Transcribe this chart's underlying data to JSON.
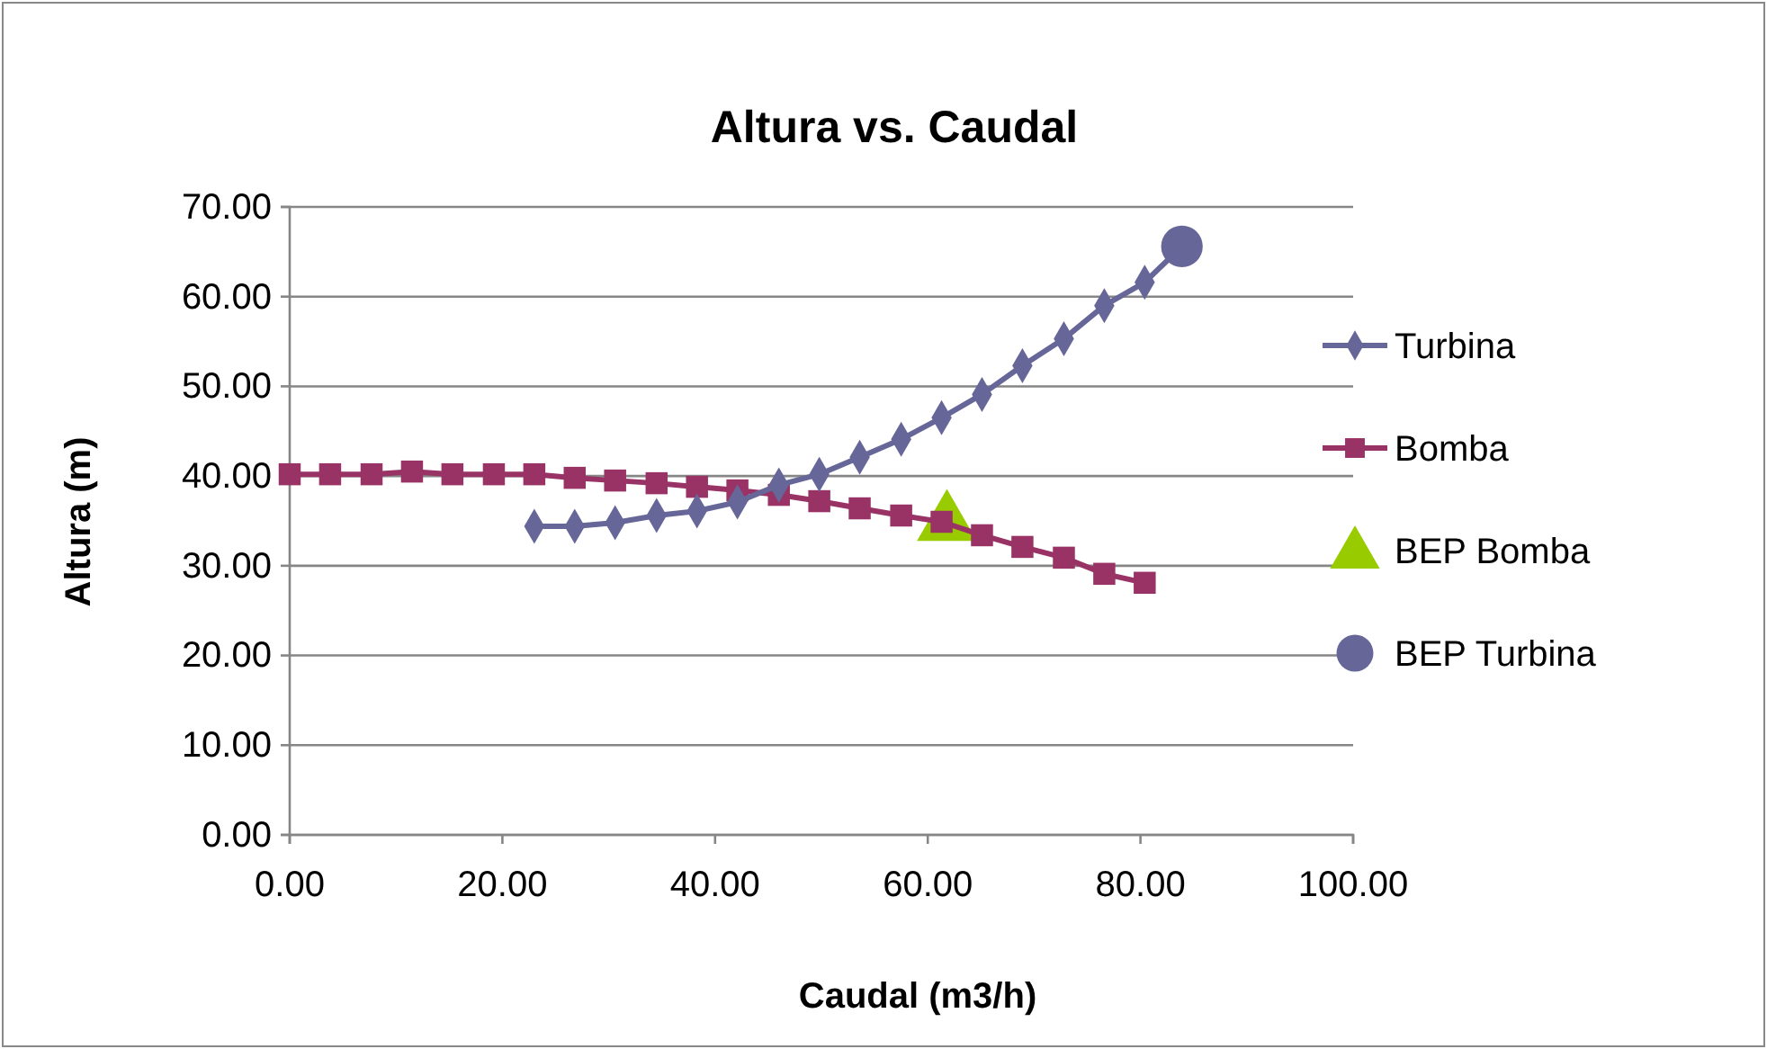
{
  "chart_data": {
    "type": "line",
    "title": "Altura vs. Caudal",
    "xlabel": "Caudal (m3/h)",
    "ylabel": "Altura (m)",
    "xlim": [
      0,
      100
    ],
    "xticks": [
      {
        "value": 0,
        "label": "0.00"
      },
      {
        "value": 20,
        "label": "20.00"
      },
      {
        "value": 40,
        "label": "40.00"
      },
      {
        "value": 60,
        "label": "60.00"
      },
      {
        "value": 80,
        "label": "80.00"
      },
      {
        "value": 100,
        "label": "100.00"
      }
    ],
    "ylim": [
      0,
      70
    ],
    "yticks": [
      {
        "value": 0,
        "label": "0.00"
      },
      {
        "value": 10,
        "label": "10.00"
      },
      {
        "value": 20,
        "label": "20.00"
      },
      {
        "value": 30,
        "label": "30.00"
      },
      {
        "value": 40,
        "label": "40.00"
      },
      {
        "value": 50,
        "label": "50.00"
      },
      {
        "value": 60,
        "label": "60.00"
      },
      {
        "value": 70,
        "label": "70.00"
      }
    ],
    "grid": "y",
    "legend": "right",
    "series": [
      {
        "name": "Turbina",
        "color": "#666699",
        "marker": "diamond",
        "line_style": "solid",
        "x": [
          23.0,
          26.8,
          30.6,
          34.5,
          38.3,
          42.1,
          46.0,
          49.8,
          53.6,
          57.5,
          61.3,
          65.1,
          68.9,
          72.8,
          76.6,
          80.4,
          83.9
        ],
        "values": [
          34.4,
          34.4,
          34.8,
          35.6,
          36.1,
          37.1,
          39.0,
          40.2,
          42.1,
          44.1,
          46.5,
          49.1,
          52.3,
          55.3,
          59.0,
          61.6,
          65.6
        ]
      },
      {
        "name": "Bomba",
        "color": "#993366",
        "marker": "square",
        "line_style": "solid",
        "x": [
          0,
          3.8,
          7.7,
          11.5,
          15.3,
          19.2,
          23.0,
          26.8,
          30.6,
          34.5,
          38.3,
          42.1,
          46.0,
          49.8,
          53.6,
          57.5,
          61.3,
          65.1,
          68.9,
          72.8,
          76.6,
          80.4
        ],
        "values": [
          40.2,
          40.2,
          40.2,
          40.5,
          40.2,
          40.2,
          40.2,
          39.8,
          39.5,
          39.2,
          38.8,
          38.4,
          37.9,
          37.2,
          36.4,
          35.6,
          34.9,
          33.4,
          32.1,
          30.9,
          29.1,
          28.1
        ]
      },
      {
        "name": "BEP Bomba",
        "type": "scatter",
        "color": "#99cc00",
        "marker": "triangle",
        "x": [
          61.8
        ],
        "values": [
          34.7
        ]
      },
      {
        "name": "BEP Turbina",
        "type": "scatter",
        "color": "#666699",
        "marker": "circle",
        "x": [
          83.9
        ],
        "values": [
          65.6
        ]
      }
    ]
  }
}
